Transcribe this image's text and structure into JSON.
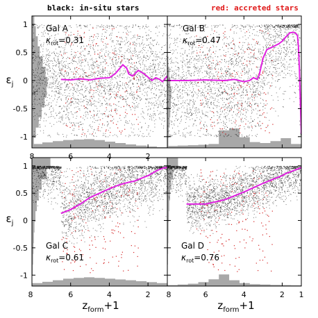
{
  "legend": {
    "black_label": "black: in-situ stars",
    "red_label": "red: accreted stars"
  },
  "colors": {
    "in_situ": "#000000",
    "accreted": "#d42020",
    "median": "#e020e0",
    "histogram": "#a8a8a8"
  },
  "axes": {
    "ylabel": "ε",
    "ylabel_sub": "j",
    "xlabel": "z",
    "xlabel_sub": "form",
    "xlabel_suffix": "+1"
  },
  "chart_data": [
    {
      "type": "scatter",
      "panel": "Gal A",
      "kappa_label": "κ",
      "kappa_sub": "rot",
      "kappa_value": "=0.31",
      "xlim": [
        8,
        1
      ],
      "ylim": [
        -1.2,
        1.15
      ],
      "xticks": [
        "8",
        "6",
        "4",
        "2"
      ],
      "yticks": [
        "1",
        "0.5",
        "0",
        "-0.5",
        "-1"
      ],
      "median_line": {
        "x": [
          6.5,
          6.0,
          5.5,
          5.0,
          4.5,
          4.0,
          3.7,
          3.5,
          3.3,
          3.1,
          3.0,
          2.8,
          2.5,
          2.2,
          2.0,
          1.8,
          1.6,
          1.4,
          1.25,
          1.1,
          1.0
        ],
        "y": [
          0.02,
          0.01,
          0.03,
          0.01,
          0.04,
          0.05,
          0.12,
          0.2,
          0.28,
          0.22,
          0.12,
          0.08,
          0.18,
          0.12,
          0.06,
          0.0,
          0.05,
          0.02,
          -0.02,
          0.04,
          0.08
        ]
      },
      "histogram_right": [
        0.1,
        0.2,
        0.35,
        0.5,
        0.65,
        0.75,
        0.8,
        0.7,
        0.55,
        0.4,
        0.3,
        0.2,
        0.12
      ],
      "histogram_bottom": [
        0.2,
        0.28,
        0.35,
        0.4,
        0.43,
        0.45,
        0.4,
        0.32,
        0.25,
        0.18,
        0.12,
        0.07,
        0.04
      ]
    },
    {
      "type": "scatter",
      "panel": "Gal B",
      "kappa_label": "κ",
      "kappa_sub": "rot",
      "kappa_value": "=0.47",
      "xlim": [
        8,
        1
      ],
      "ylim": [
        -1.2,
        1.15
      ],
      "xticks": [],
      "yticks": [],
      "median_line": {
        "x": [
          8,
          7.0,
          6.0,
          5.0,
          4.5,
          4.0,
          3.7,
          3.5,
          3.3,
          3.2,
          3.0,
          2.8,
          2.5,
          2.2,
          2.0,
          1.8,
          1.6,
          1.4,
          1.3,
          1.2,
          1.15,
          1.1,
          1.05,
          1.0
        ],
        "y": [
          0.0,
          0.0,
          0.01,
          0.0,
          0.02,
          -0.02,
          0.0,
          0.05,
          0.02,
          0.1,
          0.4,
          0.55,
          0.6,
          0.65,
          0.7,
          0.78,
          0.85,
          0.86,
          0.84,
          0.8,
          0.6,
          0.2,
          -0.4,
          -0.95
        ]
      },
      "histogram_right": [
        0.05,
        0.08,
        0.12,
        0.15,
        0.18,
        0.2,
        0.15,
        0.1,
        0.05,
        0.02,
        0.0,
        0.0,
        0.02
      ],
      "histogram_bottom": [
        0.1,
        0.12,
        0.14,
        0.16,
        0.2,
        0.9,
        1.0,
        0.55,
        0.3,
        0.25,
        0.35,
        0.5,
        0.2
      ]
    },
    {
      "type": "scatter",
      "panel": "Gal C",
      "kappa_label": "κ",
      "kappa_sub": "rot",
      "kappa_value": "=0.61",
      "xlim": [
        8,
        1
      ],
      "ylim": [
        -1.2,
        1.15
      ],
      "xticks": [
        "8",
        "6",
        "4",
        "2"
      ],
      "yticks": [
        "1",
        "0.5",
        "0",
        "-0.5",
        "-1"
      ],
      "median_line": {
        "x": [
          6.5,
          6.0,
          5.5,
          5.0,
          4.5,
          4.0,
          3.5,
          3.0,
          2.7,
          2.5,
          2.0,
          1.8,
          1.5,
          1.2,
          1.0
        ],
        "y": [
          0.13,
          0.2,
          0.3,
          0.42,
          0.5,
          0.58,
          0.65,
          0.7,
          0.72,
          0.75,
          0.82,
          0.86,
          0.92,
          0.96,
          0.97
        ]
      },
      "histogram_right": [
        0.02,
        0.04,
        0.06,
        0.08,
        0.1,
        0.13,
        0.18,
        0.25,
        0.35,
        0.5,
        0.75,
        0.95
      ],
      "histogram_bottom": [
        0.15,
        0.22,
        0.3,
        0.38,
        0.42,
        0.45,
        0.42,
        0.38,
        0.34,
        0.3,
        0.25,
        0.2,
        0.15
      ]
    },
    {
      "type": "scatter",
      "panel": "Gal D",
      "kappa_label": "κ",
      "kappa_sub": "rot",
      "kappa_value": "=0.76",
      "xlim": [
        8,
        1
      ],
      "ylim": [
        -1.2,
        1.15
      ],
      "xticks": [
        "8",
        "6",
        "4",
        "2",
        "1"
      ],
      "yticks": [],
      "median_line": {
        "x": [
          7.0,
          6.0,
          5.0,
          4.5,
          4.0,
          3.5,
          3.0,
          2.5,
          2.0,
          1.8,
          1.5,
          1.2,
          1.0
        ],
        "y": [
          0.3,
          0.3,
          0.38,
          0.45,
          0.52,
          0.6,
          0.68,
          0.75,
          0.82,
          0.86,
          0.9,
          0.94,
          0.97
        ]
      },
      "histogram_right": [
        0.01,
        0.02,
        0.03,
        0.04,
        0.05,
        0.06,
        0.08,
        0.1,
        0.14,
        0.2,
        0.3,
        0.55
      ],
      "histogram_bottom": [
        0.05,
        0.08,
        0.12,
        0.2,
        0.35,
        0.6,
        0.3,
        0.15,
        0.1,
        0.08,
        0.06,
        0.05,
        0.04
      ]
    }
  ]
}
